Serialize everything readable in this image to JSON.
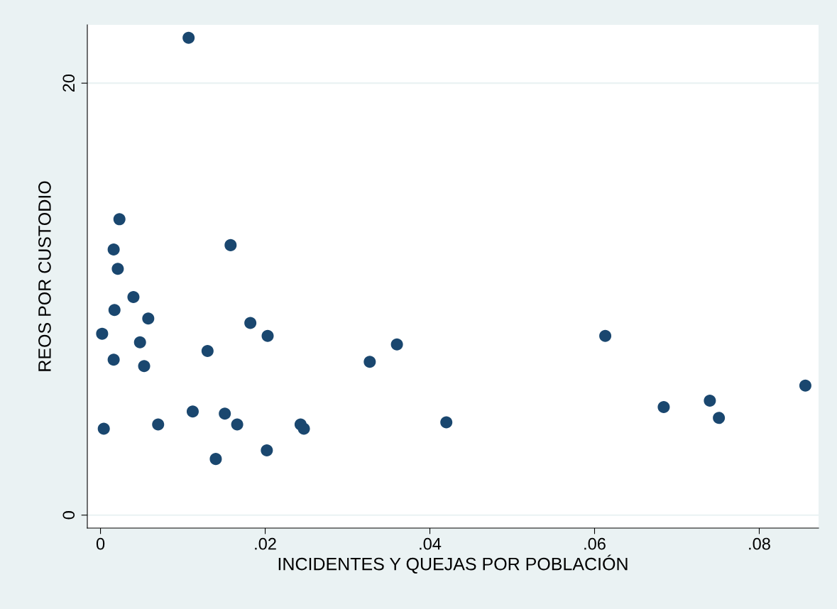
{
  "chart_data": {
    "type": "scatter",
    "xlabel": "INCIDENTES Y QUEJAS POR POBLACIÓN",
    "ylabel": "REOS POR CUSTODIO",
    "x": [
      0.0107,
      0.0023,
      0.0016,
      0.0158,
      0.0021,
      0.004,
      0.0017,
      0.0058,
      0.0002,
      0.0182,
      0.0203,
      0.0048,
      0.013,
      0.036,
      0.0613,
      0.0016,
      0.0053,
      0.0327,
      0.0856,
      0.074,
      0.0684,
      0.0751,
      0.0112,
      0.0151,
      0.0166,
      0.007,
      0.0004,
      0.0243,
      0.0247,
      0.042,
      0.0202,
      0.014
    ],
    "values": [
      22.1,
      13.7,
      12.3,
      12.5,
      11.4,
      10.1,
      9.5,
      9.1,
      8.4,
      8.9,
      8.3,
      8.0,
      7.6,
      7.9,
      8.3,
      7.2,
      6.9,
      7.1,
      6.0,
      5.3,
      5.0,
      4.5,
      4.8,
      4.7,
      4.2,
      4.2,
      4.0,
      4.2,
      4.0,
      4.3,
      3.0,
      2.6
    ],
    "color": "#1a476f",
    "marker": "circle",
    "xlim": [
      -0.0016,
      0.0872
    ],
    "ylim": [
      -0.6,
      22.7
    ],
    "xticks": [
      0,
      {
        "value": 0.02,
        "label": ".02"
      },
      {
        "value": 0.04,
        "label": ".04"
      },
      {
        "value": 0.06,
        "label": ".06"
      },
      {
        "value": 0.08,
        "label": ".08"
      }
    ],
    "yticks": [
      0,
      20
    ],
    "grid": "y"
  }
}
